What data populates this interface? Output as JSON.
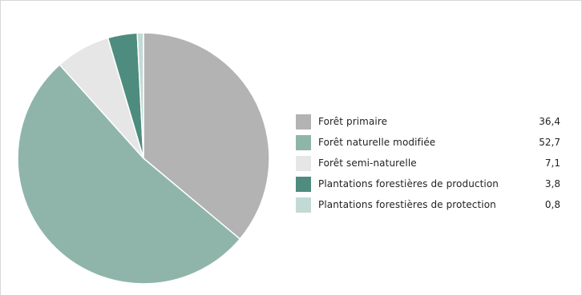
{
  "chart_data": {
    "type": "pie",
    "start_angle_deg": 0,
    "direction": "clockwise",
    "legend_position": "right",
    "categories": [
      "Forêt primaire",
      "Forêt naturelle modifiée",
      "Forêt semi-naturelle",
      "Plantations forestières de production",
      "Plantations forestières de protection"
    ],
    "values": [
      36.4,
      52.7,
      7.1,
      3.8,
      0.8
    ],
    "value_labels": [
      "36,4",
      "52,7",
      "7,1",
      "3,8",
      "0,8"
    ],
    "colors": [
      "#b3b3b3",
      "#8fb5ab",
      "#e6e6e6",
      "#4e8c7f",
      "#c3d9d5"
    ]
  }
}
